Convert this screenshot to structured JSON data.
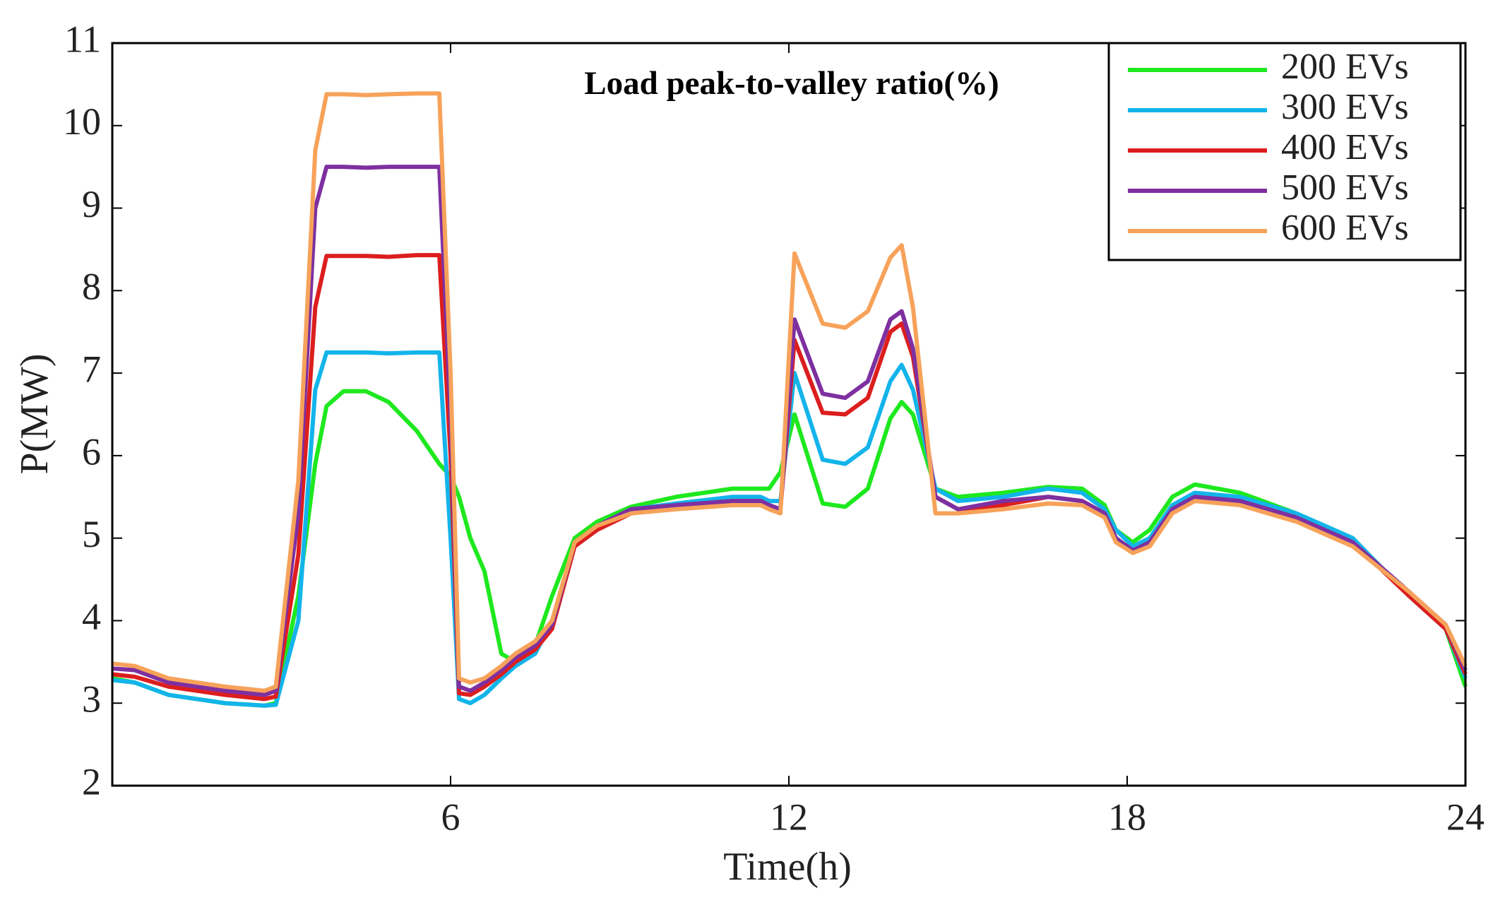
{
  "chart_data": {
    "type": "line",
    "title": "Load peak-to-valley ratio(%)",
    "x_label": "Time(h)",
    "y_label": "P(MW)",
    "x": [
      0,
      0.4,
      1,
      2,
      2.7,
      2.9,
      3.3,
      3.6,
      3.8,
      4.1,
      4.5,
      4.9,
      5.4,
      5.8,
      6.0,
      6.15,
      6.35,
      6.6,
      6.9,
      7.15,
      7.5,
      7.8,
      8.2,
      8.6,
      9.2,
      10,
      11,
      11.5,
      11.65,
      11.85,
      12.1,
      12.6,
      13.0,
      13.4,
      13.8,
      14.0,
      14.2,
      14.6,
      15.0,
      15.8,
      16.6,
      17.2,
      17.6,
      17.8,
      18.1,
      18.4,
      18.8,
      19.2,
      20,
      21,
      22,
      23,
      23.65,
      24
    ],
    "series": [
      {
        "name": "200 EVs",
        "color": "#1ee81e",
        "values": [
          3.3,
          3.25,
          3.1,
          3.0,
          2.97,
          3.0,
          4.3,
          5.9,
          6.6,
          6.78,
          6.78,
          6.65,
          6.3,
          5.9,
          5.75,
          5.5,
          5.0,
          4.6,
          3.6,
          3.5,
          3.7,
          4.3,
          5.0,
          5.2,
          5.38,
          5.5,
          5.6,
          5.6,
          5.6,
          5.8,
          6.5,
          5.42,
          5.38,
          5.6,
          6.45,
          6.65,
          6.5,
          5.6,
          5.5,
          5.55,
          5.62,
          5.6,
          5.4,
          5.1,
          4.95,
          5.1,
          5.5,
          5.65,
          5.55,
          5.3,
          5.0,
          4.3,
          3.9,
          3.2
        ]
      },
      {
        "name": "300 EVs",
        "color": "#13b4ea",
        "values": [
          3.28,
          3.25,
          3.1,
          3.0,
          2.97,
          2.98,
          4.0,
          6.8,
          7.25,
          7.25,
          7.25,
          7.24,
          7.25,
          7.25,
          5.0,
          3.05,
          3.0,
          3.1,
          3.3,
          3.45,
          3.6,
          4.0,
          4.9,
          5.15,
          5.35,
          5.42,
          5.5,
          5.5,
          5.45,
          5.45,
          7.0,
          5.95,
          5.9,
          6.1,
          6.9,
          7.1,
          6.8,
          5.6,
          5.45,
          5.5,
          5.6,
          5.55,
          5.35,
          5.1,
          4.9,
          5.0,
          5.4,
          5.55,
          5.5,
          5.3,
          5.0,
          4.3,
          3.9,
          3.3
        ]
      },
      {
        "name": "400 EVs",
        "color": "#dc1e1e",
        "values": [
          3.35,
          3.32,
          3.2,
          3.1,
          3.05,
          3.08,
          4.8,
          7.8,
          8.42,
          8.42,
          8.42,
          8.41,
          8.43,
          8.43,
          6.0,
          3.12,
          3.1,
          3.2,
          3.35,
          3.5,
          3.65,
          3.9,
          4.9,
          5.1,
          5.3,
          5.38,
          5.45,
          5.45,
          5.4,
          5.35,
          7.4,
          6.52,
          6.5,
          6.7,
          7.5,
          7.6,
          7.2,
          5.5,
          5.35,
          5.4,
          5.5,
          5.45,
          5.3,
          5.0,
          4.85,
          4.95,
          5.35,
          5.5,
          5.45,
          5.25,
          4.95,
          4.3,
          3.9,
          3.35
        ]
      },
      {
        "name": "500 EVs",
        "color": "#7e30a0",
        "values": [
          3.42,
          3.4,
          3.25,
          3.15,
          3.1,
          3.15,
          5.3,
          9.0,
          9.5,
          9.5,
          9.49,
          9.5,
          9.5,
          9.5,
          6.5,
          3.2,
          3.15,
          3.25,
          3.4,
          3.55,
          3.7,
          3.95,
          4.95,
          5.15,
          5.35,
          5.4,
          5.45,
          5.45,
          5.4,
          5.35,
          7.65,
          6.75,
          6.7,
          6.9,
          7.65,
          7.75,
          7.3,
          5.5,
          5.35,
          5.45,
          5.5,
          5.45,
          5.3,
          5.0,
          4.85,
          4.95,
          5.35,
          5.5,
          5.45,
          5.25,
          4.95,
          4.35,
          3.95,
          3.4
        ]
      },
      {
        "name": "600 EVs",
        "color": "#f7a25a",
        "values": [
          3.48,
          3.45,
          3.3,
          3.2,
          3.15,
          3.2,
          5.7,
          9.7,
          10.38,
          10.38,
          10.37,
          10.38,
          10.39,
          10.39,
          7.0,
          3.3,
          3.25,
          3.3,
          3.45,
          3.6,
          3.75,
          4.0,
          4.95,
          5.15,
          5.3,
          5.35,
          5.4,
          5.4,
          5.35,
          5.3,
          8.45,
          7.6,
          7.55,
          7.75,
          8.4,
          8.55,
          7.8,
          5.3,
          5.3,
          5.35,
          5.42,
          5.4,
          5.25,
          4.95,
          4.82,
          4.9,
          5.3,
          5.45,
          5.4,
          5.2,
          4.9,
          4.35,
          3.95,
          3.45
        ]
      }
    ],
    "xlim": [
      0,
      24
    ],
    "xticks": [
      6,
      12,
      18,
      24
    ],
    "ylim": [
      2,
      11
    ],
    "yticks": [
      2,
      3,
      4,
      5,
      6,
      7,
      8,
      9,
      10,
      11
    ],
    "grid": false,
    "legend": "upper right"
  }
}
